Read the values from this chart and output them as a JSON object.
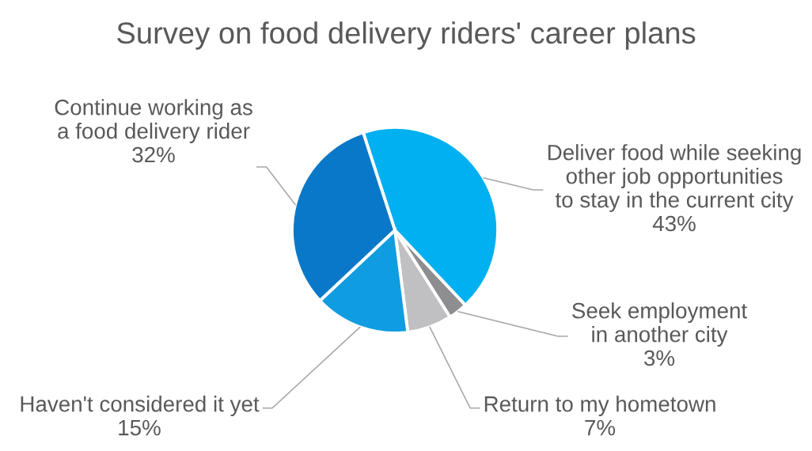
{
  "chart_data": {
    "type": "pie",
    "title": "Survey on food delivery riders' career plans",
    "categories": [
      "Deliver food while seeking\nother job opportunities\nto stay in the current city",
      "Seek employment\nin another city",
      "Return to my hometown",
      "Haven't considered it yet",
      "Continue working as\na food delivery rider"
    ],
    "values": [
      43,
      3,
      7,
      15,
      32
    ],
    "colors": [
      "#00b0f0",
      "#8e8e90",
      "#c0c0c2",
      "#109ce0",
      "#0a78c8"
    ],
    "value_labels": [
      "43%",
      "3%",
      "7%",
      "15%",
      "32%"
    ]
  }
}
